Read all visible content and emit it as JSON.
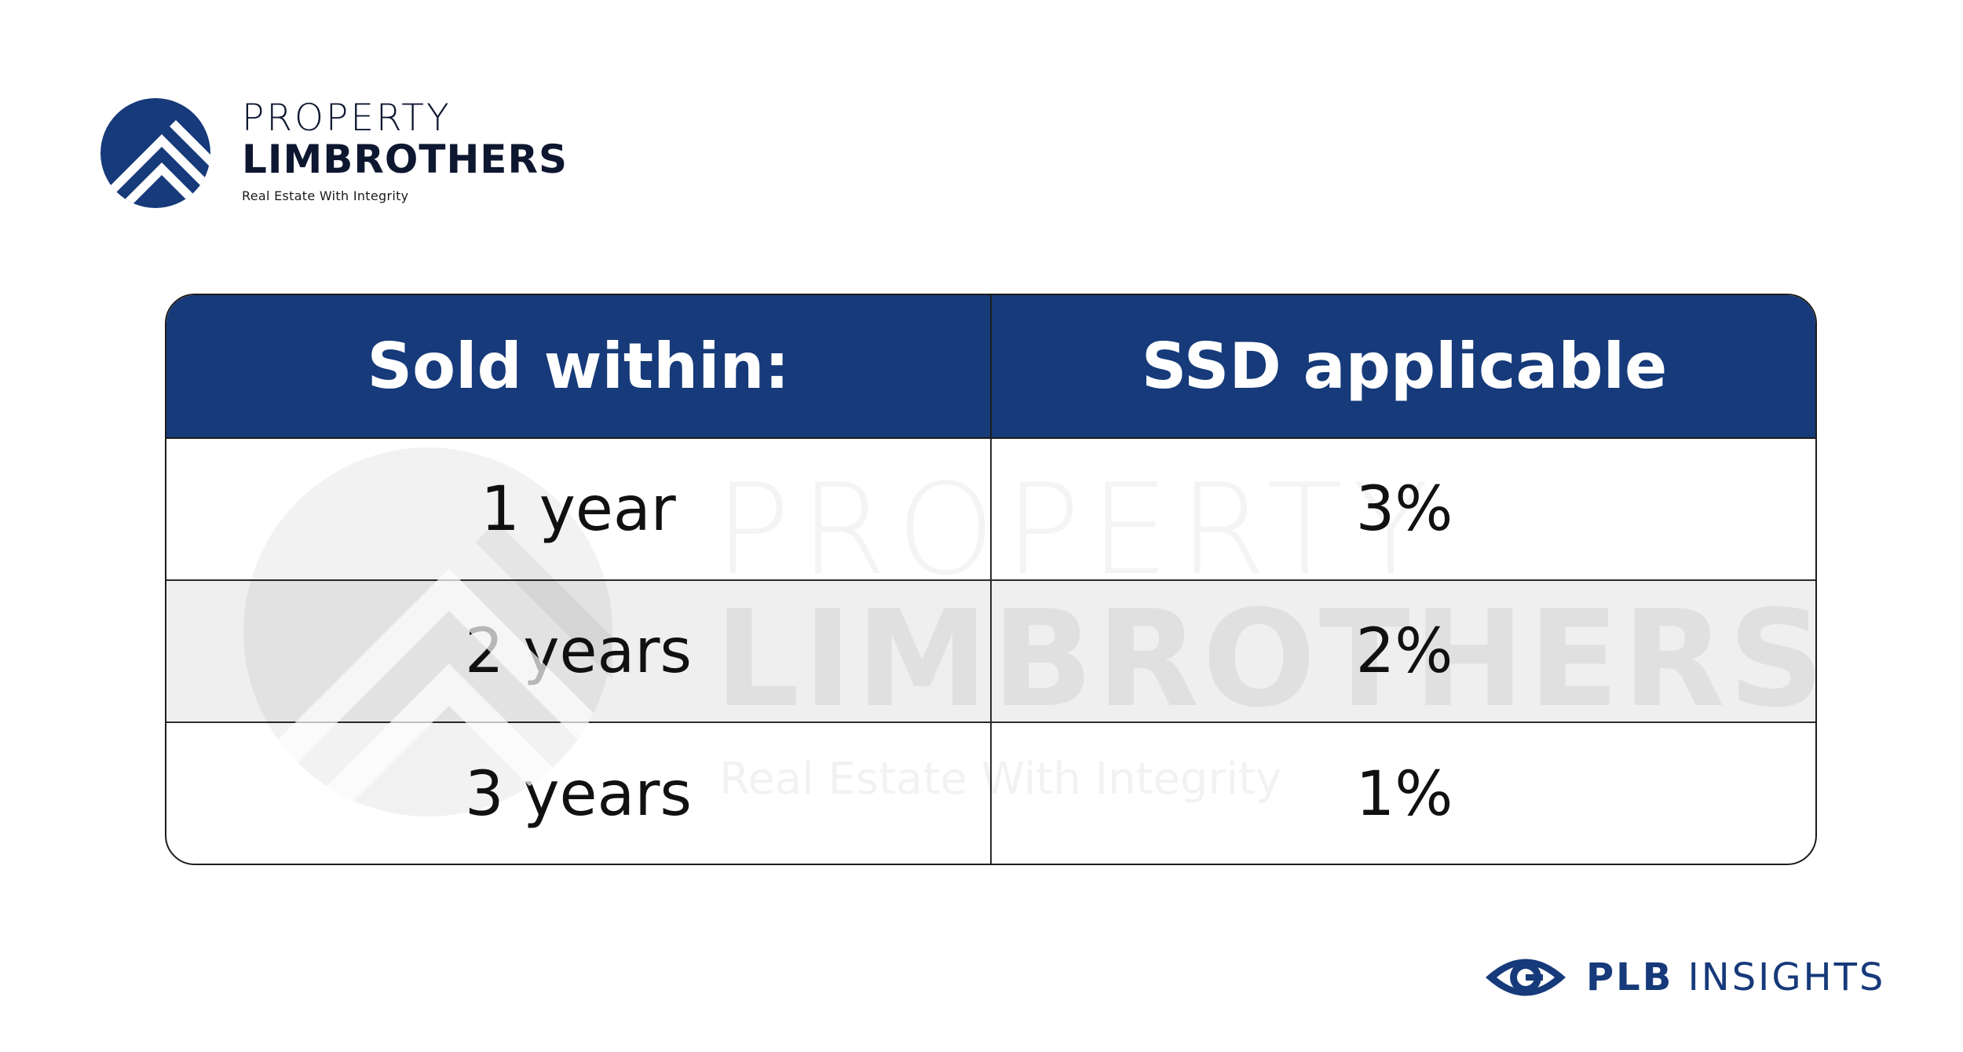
{
  "brand": {
    "line1": "PROPERTY",
    "line2": "LIMBROTHERS",
    "tagline": "Real Estate With Integrity",
    "color": "#163a7a"
  },
  "watermark": {
    "line1": "PROPERTY",
    "line2": "LIMBROTHERS",
    "tagline": "Real Estate With Integrity"
  },
  "table": {
    "header_color": "#163a7a",
    "headers": [
      "Sold within:",
      "SSD applicable"
    ],
    "rows": [
      [
        "1 year",
        "3%"
      ],
      [
        "2 years",
        "2%"
      ],
      [
        "3 years",
        "1%"
      ]
    ]
  },
  "insights": {
    "bold": "PLB",
    "text": "INSIGHTS",
    "icon": "eye-icon"
  }
}
